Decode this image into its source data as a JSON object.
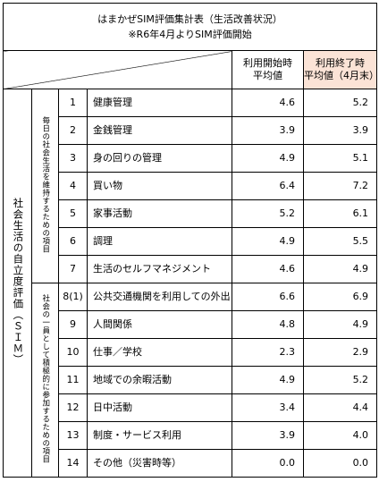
{
  "title_line1": "はまかぜSIM評価集計表（生活改善状況）",
  "title_line2": "※R6年4月よりSIM評価開始",
  "headers": {
    "start_line1": "利用開始時",
    "start_line2": "平均値",
    "end_line1": "利用終了時",
    "end_line2": "平均値（4月末）"
  },
  "side_label": "社会生活の自立度評価（ＳＩＭ）",
  "group1_label": "毎日の社会生活を維持するための項目",
  "group2_label": "社会の一員として積極的に参加するための項目",
  "rows": [
    {
      "no": "1",
      "item": "健康管理",
      "start": "4.6",
      "end": "5.2"
    },
    {
      "no": "2",
      "item": "金銭管理",
      "start": "3.9",
      "end": "3.9"
    },
    {
      "no": "3",
      "item": "身の回りの管理",
      "start": "4.9",
      "end": "5.1"
    },
    {
      "no": "4",
      "item": "買い物",
      "start": "6.4",
      "end": "7.2"
    },
    {
      "no": "5",
      "item": "家事活動",
      "start": "5.2",
      "end": "6.1"
    },
    {
      "no": "6",
      "item": "調理",
      "start": "4.9",
      "end": "5.5"
    },
    {
      "no": "7",
      "item": "生活のセルフマネジメント",
      "start": "4.6",
      "end": "4.9"
    },
    {
      "no": "8(1)",
      "item": "公共交通機関を利用しての外出",
      "start": "6.6",
      "end": "6.9"
    },
    {
      "no": "9",
      "item": "人間関係",
      "start": "4.8",
      "end": "4.9"
    },
    {
      "no": "10",
      "item": "仕事／学校",
      "start": "2.3",
      "end": "2.9"
    },
    {
      "no": "11",
      "item": "地域での余暇活動",
      "start": "4.9",
      "end": "5.2"
    },
    {
      "no": "12",
      "item": "日中活動",
      "start": "3.4",
      "end": "4.4"
    },
    {
      "no": "13",
      "item": "制度・サービス利用",
      "start": "3.9",
      "end": "4.0"
    },
    {
      "no": "14",
      "item": "その他（災害時等）",
      "start": "0.0",
      "end": "0.0"
    }
  ],
  "colors": {
    "end_header_bg": "#fbe3d6",
    "border": "#000000"
  }
}
